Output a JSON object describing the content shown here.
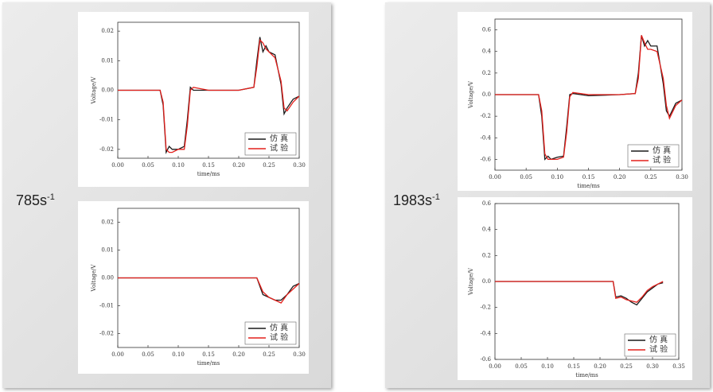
{
  "slide": {
    "labels": [
      {
        "text": "785s",
        "sup": "-1"
      },
      {
        "text": "1983s",
        "sup": "-1"
      }
    ]
  },
  "chart_data": [
    {
      "type": "line",
      "ylabel": "Voltage/V",
      "xlabel": "time/ms",
      "legend": "lower right",
      "xlim": [
        0,
        0.3
      ],
      "ylim": [
        -0.023,
        0.023
      ],
      "xticks": [
        {
          "value": 0,
          "label": "0.00"
        },
        {
          "value": 0.05,
          "label": "0.05"
        },
        {
          "value": 0.1,
          "label": "0.10"
        },
        {
          "value": 0.15,
          "label": "0.15"
        },
        {
          "value": 0.2,
          "label": "0.20"
        },
        {
          "value": 0.25,
          "label": "0.25"
        },
        {
          "value": 0.3,
          "label": "0.30"
        }
      ],
      "yticks": [
        {
          "value": 0.02,
          "label": "0.02"
        },
        {
          "value": 0.01,
          "label": "0.01"
        },
        {
          "value": 0,
          "label": "0.00"
        },
        {
          "value": -0.01,
          "label": "-0.01"
        },
        {
          "value": -0.02,
          "label": "-0.02"
        }
      ],
      "x": [
        0,
        0.07,
        0.075,
        0.08,
        0.085,
        0.09,
        0.1,
        0.11,
        0.115,
        0.12,
        0.125,
        0.15,
        0.2,
        0.225,
        0.23,
        0.235,
        0.24,
        0.245,
        0.25,
        0.26,
        0.27,
        0.275,
        0.28,
        0.29,
        0.3
      ],
      "series": [
        {
          "name": "仿 真",
          "color": "#1a1a1a",
          "values": [
            0,
            0,
            -0.005,
            -0.021,
            -0.019,
            -0.02,
            -0.02,
            -0.019,
            -0.01,
            0.001,
            0,
            0,
            0,
            0.001,
            0.01,
            0.018,
            0.013,
            0.015,
            0.013,
            0.012,
            0.002,
            -0.008,
            -0.006,
            -0.003,
            -0.002
          ]
        },
        {
          "name": "试 验",
          "color": "#e3201c",
          "values": [
            0,
            0,
            -0.004,
            -0.02,
            -0.021,
            -0.021,
            -0.02,
            -0.02,
            -0.012,
            0,
            0.001,
            0,
            0,
            0.001,
            0.008,
            0.017,
            0.016,
            0.014,
            0.013,
            0.011,
            0.003,
            -0.006,
            -0.007,
            -0.004,
            -0.002
          ]
        }
      ]
    },
    {
      "type": "line",
      "ylabel": "Voltage/V",
      "xlabel": "time/ms",
      "legend": "lower right",
      "xlim": [
        0,
        0.3
      ],
      "ylim": [
        -0.025,
        0.025
      ],
      "xticks": [
        {
          "value": 0,
          "label": "0.00"
        },
        {
          "value": 0.05,
          "label": "0.05"
        },
        {
          "value": 0.1,
          "label": "0.10"
        },
        {
          "value": 0.15,
          "label": "0.15"
        },
        {
          "value": 0.2,
          "label": "0.20"
        },
        {
          "value": 0.25,
          "label": "0.25"
        },
        {
          "value": 0.3,
          "label": "0.30"
        }
      ],
      "yticks": [
        {
          "value": 0.02,
          "label": "0.02"
        },
        {
          "value": 0.01,
          "label": "0.01"
        },
        {
          "value": 0,
          "label": "0.00"
        },
        {
          "value": -0.01,
          "label": "-0.01"
        },
        {
          "value": -0.02,
          "label": "-0.02"
        }
      ],
      "x": [
        0,
        0.22,
        0.23,
        0.24,
        0.25,
        0.26,
        0.27,
        0.28,
        0.29,
        0.3
      ],
      "series": [
        {
          "name": "仿 真",
          "color": "#1a1a1a",
          "values": [
            0,
            0,
            0,
            -0.006,
            -0.007,
            -0.008,
            -0.008,
            -0.006,
            -0.003,
            -0.002
          ]
        },
        {
          "name": "试 验",
          "color": "#e3201c",
          "values": [
            0,
            0,
            0,
            -0.005,
            -0.007,
            -0.008,
            -0.009,
            -0.006,
            -0.004,
            -0.002
          ]
        }
      ]
    },
    {
      "type": "line",
      "ylabel": "Voltage/V",
      "xlabel": "time/ms",
      "legend": "lower right",
      "xlim": [
        0,
        0.3
      ],
      "ylim": [
        -0.7,
        0.7
      ],
      "xticks": [
        {
          "value": 0,
          "label": "0.00"
        },
        {
          "value": 0.05,
          "label": "0.05"
        },
        {
          "value": 0.1,
          "label": "0.10"
        },
        {
          "value": 0.15,
          "label": "0.15"
        },
        {
          "value": 0.2,
          "label": "0.20"
        },
        {
          "value": 0.25,
          "label": "0.25"
        },
        {
          "value": 0.3,
          "label": "0.30"
        }
      ],
      "yticks": [
        0.6,
        0.4,
        0.2,
        {
          "value": 0,
          "label": "0.0"
        },
        -0.2,
        -0.4,
        -0.6
      ],
      "x": [
        0,
        0.07,
        0.075,
        0.08,
        0.085,
        0.09,
        0.1,
        0.11,
        0.115,
        0.12,
        0.125,
        0.15,
        0.2,
        0.225,
        0.23,
        0.235,
        0.24,
        0.245,
        0.25,
        0.26,
        0.27,
        0.275,
        0.28,
        0.29,
        0.3
      ],
      "series": [
        {
          "name": "仿 真",
          "color": "#1a1a1a",
          "values": [
            0,
            0,
            -0.2,
            -0.6,
            -0.57,
            -0.6,
            -0.58,
            -0.57,
            -0.3,
            0,
            0.01,
            -0.01,
            0,
            0.01,
            0.2,
            0.55,
            0.45,
            0.5,
            0.45,
            0.45,
            0.1,
            -0.15,
            -0.2,
            -0.08,
            -0.05
          ]
        },
        {
          "name": "试 验",
          "color": "#e3201c",
          "values": [
            0,
            0,
            -0.15,
            -0.55,
            -0.6,
            -0.6,
            -0.6,
            -0.58,
            -0.35,
            -0.02,
            0.02,
            0,
            0,
            0.01,
            0.15,
            0.55,
            0.48,
            0.42,
            0.42,
            0.4,
            0.15,
            -0.1,
            -0.22,
            -0.1,
            -0.05
          ]
        }
      ]
    },
    {
      "type": "line",
      "ylabel": "Voltage/V",
      "xlabel": "time/ms",
      "legend": "lower right",
      "xlim": [
        0,
        0.35
      ],
      "ylim": [
        -0.6,
        0.6
      ],
      "xticks": [
        {
          "value": 0,
          "label": "0.00"
        },
        {
          "value": 0.05,
          "label": "0.05"
        },
        {
          "value": 0.1,
          "label": "0.10"
        },
        {
          "value": 0.15,
          "label": "0.15"
        },
        {
          "value": 0.2,
          "label": "0.20"
        },
        {
          "value": 0.25,
          "label": "0.25"
        },
        {
          "value": 0.3,
          "label": "0.30"
        },
        {
          "value": 0.35,
          "label": "0.35"
        }
      ],
      "yticks": [
        0.6,
        0.4,
        0.2,
        {
          "value": 0,
          "label": "0.0"
        },
        -0.2,
        -0.4,
        -0.6
      ],
      "x": [
        0,
        0.225,
        0.23,
        0.24,
        0.25,
        0.26,
        0.27,
        0.28,
        0.29,
        0.3,
        0.31,
        0.32
      ],
      "series": [
        {
          "name": "仿 真",
          "color": "#1a1a1a",
          "values": [
            0,
            0,
            -0.12,
            -0.11,
            -0.13,
            -0.16,
            -0.18,
            -0.13,
            -0.08,
            -0.05,
            -0.02,
            -0.01
          ]
        },
        {
          "name": "试 验",
          "color": "#e3201c",
          "values": [
            0,
            0,
            -0.13,
            -0.12,
            -0.14,
            -0.15,
            -0.16,
            -0.12,
            -0.07,
            -0.04,
            -0.02,
            0
          ]
        }
      ]
    }
  ]
}
